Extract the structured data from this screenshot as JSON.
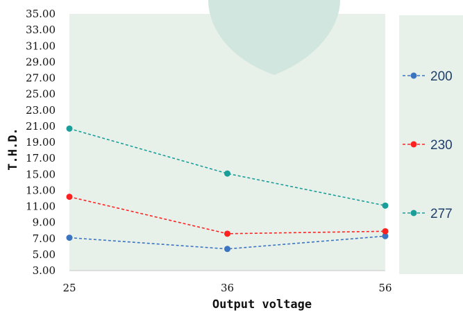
{
  "chart_data": {
    "type": "line",
    "x": [
      25,
      36,
      56
    ],
    "categories": [
      "25",
      "36",
      "56"
    ],
    "xlabel": "Output voltage",
    "ylabel": "T.H.D.",
    "ylim": [
      3,
      35
    ],
    "yticks": [
      "3.00",
      "5.00",
      "7.00",
      "9.00",
      "11.00",
      "13.00",
      "15.00",
      "17.00",
      "19.00",
      "21.00",
      "23.00",
      "25.00",
      "27.00",
      "29.00",
      "31.00",
      "33.00",
      "35.00"
    ],
    "grid": false,
    "legend_position": "right",
    "series": [
      {
        "name": "200",
        "values": [
          7.1,
          5.7,
          7.3
        ],
        "color": "#3b74c1"
      },
      {
        "name": "230",
        "values": [
          12.2,
          7.6,
          7.9
        ],
        "color": "#ff2020"
      },
      {
        "name": "277",
        "values": [
          20.7,
          15.1,
          11.1
        ],
        "color": "#1a9e9a"
      }
    ],
    "colors": {
      "plot_background": "#e7f1ea",
      "watermark": "#d2e6e0"
    }
  }
}
